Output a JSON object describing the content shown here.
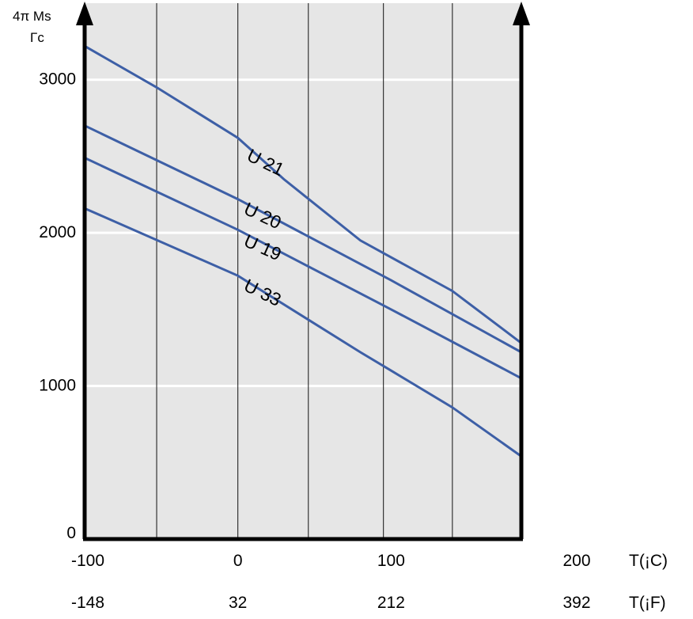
{
  "chart_data": {
    "type": "line",
    "ylabel_line1": "4π Ms",
    "ylabel_line2": "Γc",
    "x_celsius_label": "T(¡C)",
    "x_fahrenheit_label": "T(¡F)",
    "xlim": [
      -100,
      185
    ],
    "ylim": [
      0,
      3500
    ],
    "x_ticks": [
      -100,
      0,
      100,
      200
    ],
    "x_tick_labels_c": [
      "-100",
      "0",
      "100",
      "200"
    ],
    "x_tick_labels_f": [
      "-148",
      "32",
      "212",
      "392"
    ],
    "y_ticks": [
      0,
      1000,
      2000,
      3000
    ],
    "y_tick_labels": [
      "0",
      "1000",
      "2000",
      "3000"
    ],
    "vertical_gridlines_x": [
      -53,
      0,
      46,
      95,
      140
    ],
    "horizontal_gridlines_y": [
      1000,
      2000,
      3000
    ],
    "background_color": "#e6e6e6",
    "line_color": "#3d5fa6",
    "series": [
      {
        "name": "U 21",
        "x": [
          -100,
          -53,
          0,
          30,
          80,
          140,
          185
        ],
        "y": [
          3220,
          2950,
          2620,
          2350,
          1950,
          1620,
          1280
        ]
      },
      {
        "name": "U 20",
        "x": [
          -100,
          0,
          100,
          185
        ],
        "y": [
          2700,
          2220,
          1690,
          1220
        ]
      },
      {
        "name": "U 19",
        "x": [
          -100,
          0,
          100,
          185
        ],
        "y": [
          2490,
          2020,
          1500,
          1050
        ]
      },
      {
        "name": "U 33",
        "x": [
          -100,
          0,
          80,
          100,
          140,
          185
        ],
        "y": [
          2160,
          1720,
          1220,
          1100,
          860,
          540
        ]
      }
    ]
  }
}
